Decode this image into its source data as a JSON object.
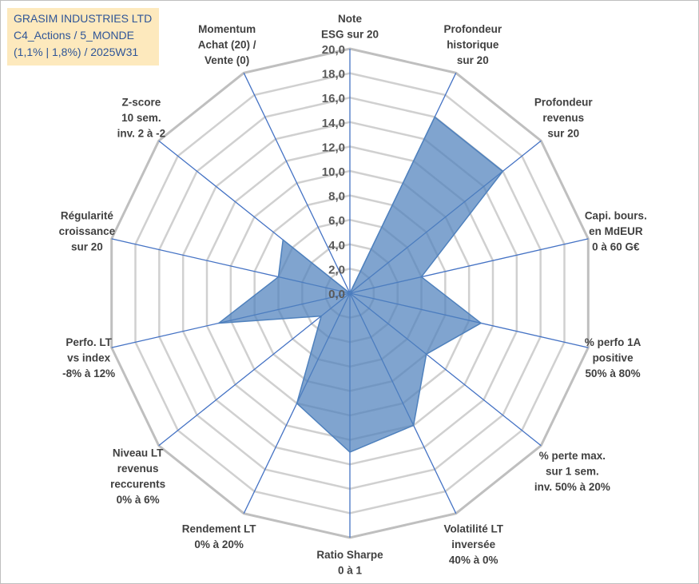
{
  "header": {
    "line1": "GRASIM INDUSTRIES LTD",
    "line2": "C4_Actions / 5_MONDE",
    "line3": "(1,1% | 1,8%) / 2025W31"
  },
  "colors": {
    "fill": "#4f81bd",
    "fill_opacity": 0.72,
    "spoke": "#4472c4",
    "grid": "#d0d0d0",
    "grid_outer": "#bfbfbf",
    "title_bg": "#fde9bd",
    "title_text": "#2f5597"
  },
  "chart_data": {
    "type": "radar",
    "rmin": 0,
    "rmax": 20,
    "tick_step": 2,
    "ticks": [
      "0,0",
      "2,0",
      "4,0",
      "6,0",
      "8,0",
      "10,0",
      "12,0",
      "14,0",
      "16,0",
      "18,0",
      "20,0"
    ],
    "categories": [
      [
        "Note",
        "ESG sur 20"
      ],
      [
        "Profondeur",
        "historique",
        "sur 20"
      ],
      [
        "Profondeur",
        "revenus",
        "sur 20"
      ],
      [
        "Capi. bours.",
        "en MdEUR",
        "0 à 60 G€"
      ],
      [
        "% perfo 1A",
        "positive",
        "50% à 80%"
      ],
      [
        "% perte max.",
        "sur 1 sem.",
        "inv. 50% à 20%"
      ],
      [
        "Volatilité LT",
        "inversée",
        "40% à 0%"
      ],
      [
        "Ratio Sharpe",
        "0 à 1"
      ],
      [
        "Rendement LT",
        "0% à 20%"
      ],
      [
        "Niveau LT",
        "revenus",
        "reccurents",
        "0% à 6%"
      ],
      [
        "Perfo. LT",
        "vs index",
        "-8% à 12%"
      ],
      [
        "Régularité",
        "croissance",
        "sur 20"
      ],
      [
        "Z-score",
        "10 sem.",
        "inv. 2 à -2"
      ],
      [
        "Momentum",
        "Achat (20) /",
        "Vente (0)"
      ]
    ],
    "series": [
      {
        "values": [
          0,
          16,
          16,
          6,
          11,
          8,
          12,
          13,
          10,
          3,
          11,
          6,
          7,
          0
        ]
      }
    ],
    "grid": true
  }
}
